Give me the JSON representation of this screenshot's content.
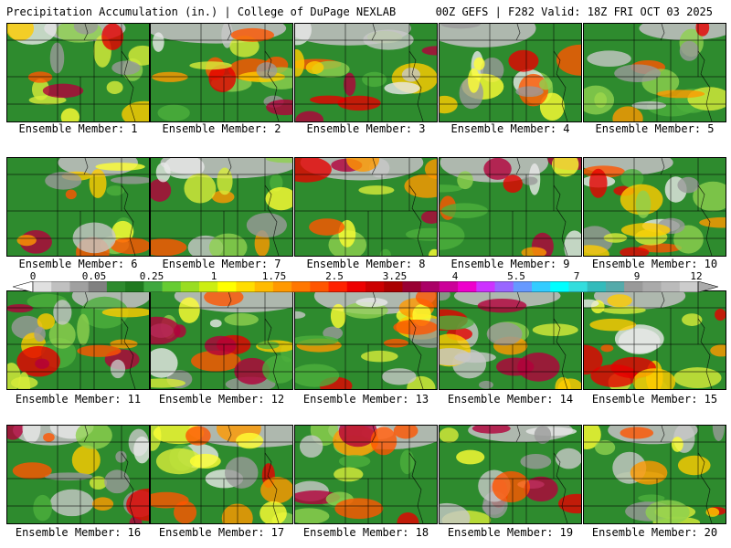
{
  "header": {
    "left": "Precipitation Accumulation (in.) | College of DuPage NEXLAB",
    "right": "00Z GEFS | F282 Valid: 18Z FRI OCT 03 2025"
  },
  "members": [
    {
      "label": "Ensemble Member: 1"
    },
    {
      "label": "Ensemble Member: 2"
    },
    {
      "label": "Ensemble Member: 3"
    },
    {
      "label": "Ensemble Member: 4"
    },
    {
      "label": "Ensemble Member: 5"
    },
    {
      "label": "Ensemble Member: 6"
    },
    {
      "label": "Ensemble Member: 7"
    },
    {
      "label": "Ensemble Member: 8"
    },
    {
      "label": "Ensemble Member: 9"
    },
    {
      "label": "Ensemble Member: 10"
    },
    {
      "label": "Ensemble Member: 11"
    },
    {
      "label": "Ensemble Member: 12"
    },
    {
      "label": "Ensemble Member: 13"
    },
    {
      "label": "Ensemble Member: 14"
    },
    {
      "label": "Ensemble Member: 15"
    },
    {
      "label": "Ensemble Member: 16"
    },
    {
      "label": "Ensemble Member: 17"
    },
    {
      "label": "Ensemble Member: 18"
    },
    {
      "label": "Ensemble Member: 19"
    },
    {
      "label": "Ensemble Member: 20"
    }
  ],
  "colorbar": {
    "ticks": [
      "0",
      "0.05",
      "0.25",
      "1",
      "1.75",
      "2.5",
      "3.25",
      "4",
      "5.5",
      "7",
      "9",
      "12"
    ],
    "colors": [
      "#e0e0e0",
      "#c0c0c0",
      "#a0a0a0",
      "#808080",
      "#2e8b2e",
      "#1f7a1f",
      "#3fa83f",
      "#66cc33",
      "#99dd22",
      "#ccee11",
      "#ffff00",
      "#ffdd00",
      "#ffbb00",
      "#ff9900",
      "#ff7700",
      "#ff5500",
      "#ff2200",
      "#ee0000",
      "#cc0000",
      "#aa0000",
      "#990033",
      "#aa0066",
      "#cc0099",
      "#ee00cc",
      "#cc33ff",
      "#9966ff",
      "#6699ff",
      "#33ccff",
      "#00ffff",
      "#33dddd",
      "#33bbbb",
      "#55aaaa",
      "#999999",
      "#aaaaaa",
      "#bbbbbb",
      "#cccccc"
    ]
  }
}
